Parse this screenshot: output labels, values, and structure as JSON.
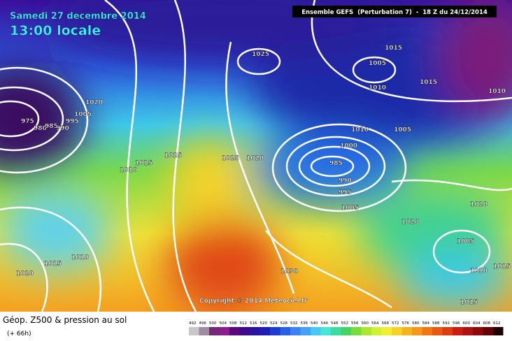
{
  "header": {
    "date": "Samedi 27 decembre 2014",
    "time": "13:00 locale",
    "model": "Ensemble GEFS  (Perturbation 7)  -  18 Z du 24/12/2014"
  },
  "isobar_labels": [
    "975",
    "980",
    "985",
    "990",
    "995",
    "1005",
    "1020",
    "1025",
    "1015",
    "1005",
    "1010",
    "1015",
    "1010",
    "1010",
    "1005",
    "1000",
    "985",
    "990",
    "995",
    "1005",
    "1025",
    "1015",
    "1010",
    "1025",
    "1020",
    "1020",
    "1020",
    "1005",
    "1010",
    "1015",
    "1010",
    "1015",
    "1020",
    "1030",
    "1015"
  ],
  "copyright": "Copyright © 2014 Meteociel.fr",
  "legend": {
    "title": "Géop. Z500 & pression au sol",
    "lead": "(+ 66h)",
    "scale": [
      "492",
      "496",
      "500",
      "504",
      "508",
      "512",
      "516",
      "520",
      "524",
      "528",
      "532",
      "536",
      "540",
      "544",
      "548",
      "552",
      "556",
      "560",
      "564",
      "568",
      "572",
      "576",
      "580",
      "584",
      "588",
      "592",
      "596",
      "600",
      "604",
      "608",
      "612"
    ],
    "colors": [
      "#c8c8c8",
      "#a08ca0",
      "#782878",
      "#8c1e8c",
      "#5a0a78",
      "#3c0a8c",
      "#2814a0",
      "#1e1eb4",
      "#1e3cd2",
      "#2860e6",
      "#3c82f0",
      "#46a0f5",
      "#46c8f0",
      "#46e6d2",
      "#3cdca0",
      "#46d264",
      "#78dc3c",
      "#aae632",
      "#d2f032",
      "#f0f032",
      "#f5d228",
      "#f5b41e",
      "#f5961e",
      "#f07814",
      "#e65a14",
      "#dc3c14",
      "#c81e14",
      "#aa1414",
      "#8c0a0a",
      "#640505",
      "#1e0000"
    ]
  }
}
